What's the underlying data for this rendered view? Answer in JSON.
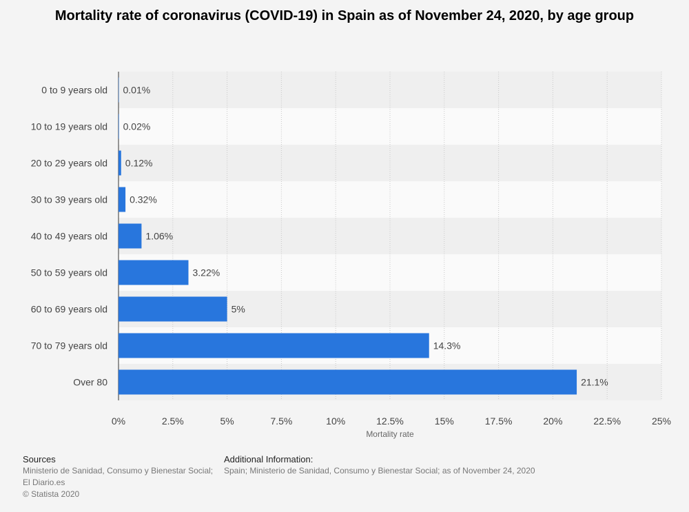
{
  "chart_data": {
    "type": "bar",
    "orientation": "horizontal",
    "title": "Mortality rate of coronavirus (COVID-19) in Spain as of November 24, 2020, by age group",
    "categories": [
      "0 to 9 years old",
      "10 to 19 years old",
      "20 to 29 years old",
      "30 to 39 years old",
      "40 to 49 years old",
      "50 to 59 years old",
      "60 to 69 years old",
      "70 to 79 years old",
      "Over 80"
    ],
    "values": [
      0.01,
      0.02,
      0.12,
      0.32,
      1.06,
      3.22,
      5,
      14.3,
      21.1
    ],
    "value_labels": [
      "0.01%",
      "0.02%",
      "0.12%",
      "0.32%",
      "1.06%",
      "3.22%",
      "5%",
      "14.3%",
      "21.1%"
    ],
    "xlabel": "Mortality rate",
    "ylabel": "",
    "xlim": [
      0,
      25
    ],
    "ticks": [
      0,
      2.5,
      5,
      7.5,
      10,
      12.5,
      15,
      17.5,
      20,
      22.5,
      25
    ],
    "tick_labels": [
      "0%",
      "2.5%",
      "5%",
      "7.5%",
      "10%",
      "12.5%",
      "15%",
      "17.5%",
      "20%",
      "22.5%",
      "25%"
    ],
    "grid": true,
    "bar_color": "#2876dd"
  },
  "footer": {
    "sources_heading": "Sources",
    "sources_line1": "Ministerio de Sanidad, Consumo y Bienestar Social;",
    "sources_line2": "El Diario.es",
    "copyright": "© Statista 2020",
    "additional_heading": "Additional Information:",
    "additional_text": "Spain; Ministerio de Sanidad, Consumo y Bienestar Social; as of November 24, 2020"
  }
}
